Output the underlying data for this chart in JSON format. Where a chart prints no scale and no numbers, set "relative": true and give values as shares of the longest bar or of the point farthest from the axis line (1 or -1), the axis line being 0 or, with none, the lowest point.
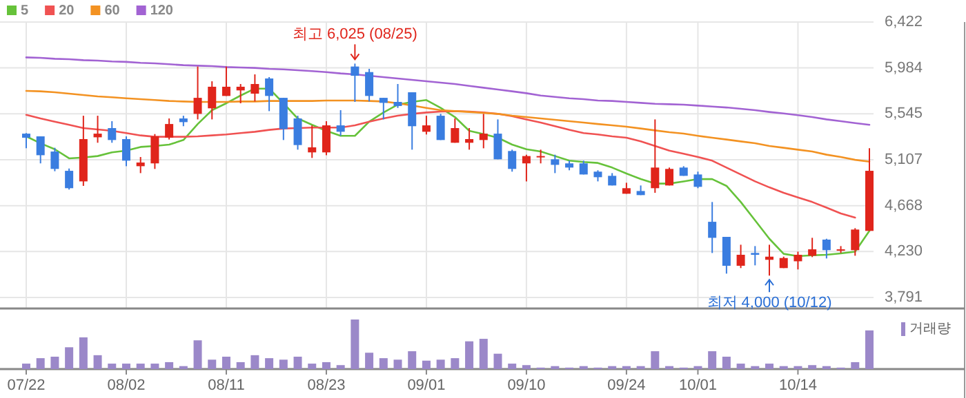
{
  "chart_data": [
    {
      "type": "candlestick",
      "categories": [
        "07/22",
        null,
        null,
        null,
        null,
        null,
        null,
        "08/02",
        null,
        null,
        null,
        null,
        null,
        null,
        "08/11",
        null,
        null,
        null,
        null,
        null,
        null,
        "08/23",
        null,
        null,
        null,
        null,
        null,
        null,
        "09/01",
        null,
        null,
        null,
        null,
        null,
        null,
        "09/10",
        null,
        null,
        null,
        null,
        null,
        null,
        "09/24",
        null,
        null,
        null,
        null,
        "10/01",
        null,
        null,
        null,
        null,
        null,
        null,
        "10/14",
        null,
        null,
        null,
        null,
        null
      ],
      "ohlc": [
        [
          5356,
          5361,
          5216,
          5317
        ],
        [
          5330,
          5330,
          5072,
          5150
        ],
        [
          5185,
          5221,
          4997,
          5019
        ],
        [
          5001,
          5023,
          4822,
          4835
        ],
        [
          4900,
          5527,
          4857,
          5304
        ],
        [
          5321,
          5527,
          5269,
          5356
        ],
        [
          5409,
          5475,
          5269,
          5295
        ],
        [
          5304,
          5330,
          5045,
          5098
        ],
        [
          5045,
          5133,
          4979,
          5080
        ],
        [
          5072,
          5352,
          5019,
          5330
        ],
        [
          5317,
          5501,
          5300,
          5448
        ],
        [
          5501,
          5527,
          5427,
          5466
        ],
        [
          5545,
          5997,
          5492,
          5698
        ],
        [
          5598,
          5856,
          5492,
          5804
        ],
        [
          5716,
          5997,
          5716,
          5804
        ],
        [
          5769,
          5830,
          5646,
          5804
        ],
        [
          5738,
          5922,
          5663,
          5830
        ],
        [
          5883,
          5896,
          5571,
          5716
        ],
        [
          5698,
          5698,
          5295,
          5400
        ],
        [
          5501,
          5527,
          5203,
          5247
        ],
        [
          5177,
          5435,
          5124,
          5225
        ],
        [
          5177,
          5475,
          5150,
          5435
        ],
        [
          5435,
          5580,
          5335,
          5374
        ],
        [
          5997,
          6025,
          5659,
          5909
        ],
        [
          5944,
          5975,
          5663,
          5716
        ],
        [
          5698,
          5698,
          5492,
          5650
        ],
        [
          5659,
          5830,
          5602,
          5620
        ],
        [
          5751,
          5751,
          5203,
          5427
        ],
        [
          5374,
          5527,
          5348,
          5435
        ],
        [
          5527,
          5545,
          5295,
          5295
        ],
        [
          5269,
          5501,
          5269,
          5409
        ],
        [
          5269,
          5409,
          5203,
          5304
        ],
        [
          5295,
          5545,
          5216,
          5356
        ],
        [
          5356,
          5492,
          5111,
          5111
        ],
        [
          5190,
          5203,
          4993,
          5019
        ],
        [
          5072,
          5155,
          4900,
          5142
        ],
        [
          5137,
          5203,
          5072,
          5142
        ],
        [
          5111,
          5155,
          4979,
          5058
        ],
        [
          5072,
          5098,
          5006,
          5032
        ],
        [
          5072,
          5098,
          4966,
          4966
        ],
        [
          4993,
          5006,
          4900,
          4940
        ],
        [
          4953,
          4979,
          4861,
          4861
        ],
        [
          4782,
          4887,
          4782,
          4835
        ],
        [
          4808,
          4861,
          4769,
          4769
        ],
        [
          4835,
          5492,
          4791,
          5032
        ],
        [
          4861,
          5032,
          4861,
          5019
        ],
        [
          5032,
          5045,
          4953,
          4953
        ],
        [
          4966,
          4993,
          4835,
          4848
        ],
        [
          4514,
          4703,
          4216,
          4361
        ],
        [
          4370,
          4370,
          4019,
          4094
        ],
        [
          4094,
          4295,
          4072,
          4199
        ],
        [
          4216,
          4282,
          4098,
          4199
        ],
        [
          4151,
          4295,
          4000,
          4181
        ],
        [
          4072,
          4181,
          4072,
          4168
        ],
        [
          4137,
          4229,
          4059,
          4199
        ],
        [
          4190,
          4361,
          4177,
          4251
        ],
        [
          4344,
          4352,
          4164,
          4243
        ],
        [
          4238,
          4282,
          4216,
          4251
        ],
        [
          4243,
          4453,
          4190,
          4440
        ],
        [
          4427,
          5216,
          4427,
          5001
        ]
      ],
      "colors": [
        "#3a7de0",
        "#3a7de0",
        "#3a7de0",
        "#3a7de0",
        "#e0251b",
        "#e0251b",
        "#3a7de0",
        "#3a7de0",
        "#e0251b",
        "#e0251b",
        "#e0251b",
        "#3a7de0",
        "#e0251b",
        "#e0251b",
        "#e0251b",
        "#e0251b",
        "#e0251b",
        "#3a7de0",
        "#3a7de0",
        "#3a7de0",
        "#e0251b",
        "#e0251b",
        "#3a7de0",
        "#3a7de0",
        "#3a7de0",
        "#3a7de0",
        "#3a7de0",
        "#3a7de0",
        "#e0251b",
        "#3a7de0",
        "#e0251b",
        "#e0251b",
        "#e0251b",
        "#3a7de0",
        "#3a7de0",
        "#e0251b",
        "#e0251b",
        "#3a7de0",
        "#3a7de0",
        "#3a7de0",
        "#3a7de0",
        "#3a7de0",
        "#e0251b",
        "#3a7de0",
        "#e0251b",
        "#e0251b",
        "#3a7de0",
        "#3a7de0",
        "#3a7de0",
        "#3a7de0",
        "#e0251b",
        "#3a7de0",
        "#e0251b",
        "#e0251b",
        "#e0251b",
        "#e0251b",
        "#3a7de0",
        "#e0251b",
        "#e0251b",
        "#e0251b"
      ],
      "series": [
        {
          "name": "5",
          "type": "line",
          "color": "#66c23a",
          "values": [
            5330,
            5264,
            5207,
            5120,
            5128,
            5142,
            5177,
            5194,
            5229,
            5238,
            5251,
            5295,
            5448,
            5580,
            5646,
            5720,
            5786,
            5786,
            5646,
            5501,
            5440,
            5383,
            5335,
            5335,
            5471,
            5558,
            5633,
            5659,
            5677,
            5602,
            5514,
            5383,
            5352,
            5317,
            5251,
            5207,
            5185,
            5142,
            5098,
            5085,
            5076,
            5032,
            4975,
            4922,
            4879,
            4879,
            4900,
            4922,
            4922,
            4857,
            4703,
            4528,
            4352,
            4208,
            4186,
            4194,
            4199,
            4212,
            4229,
            4427
          ]
        },
        {
          "name": "20",
          "type": "line",
          "color": "#f05252",
          "values": [
            5536,
            5501,
            5470,
            5440,
            5409,
            5396,
            5383,
            5361,
            5339,
            5326,
            5326,
            5326,
            5330,
            5339,
            5348,
            5361,
            5374,
            5392,
            5405,
            5409,
            5414,
            5414,
            5414,
            5435,
            5470,
            5501,
            5527,
            5545,
            5558,
            5567,
            5571,
            5567,
            5558,
            5545,
            5523,
            5492,
            5462,
            5427,
            5392,
            5361,
            5348,
            5330,
            5317,
            5282,
            5238,
            5194,
            5164,
            5133,
            5098,
            5032,
            4966,
            4900,
            4843,
            4791,
            4747,
            4703,
            4650,
            4594,
            4554,
            null
          ]
        },
        {
          "name": "60",
          "type": "line",
          "color": "#f39222",
          "values": [
            5764,
            5760,
            5751,
            5738,
            5725,
            5712,
            5703,
            5694,
            5685,
            5677,
            5668,
            5663,
            5659,
            5659,
            5659,
            5663,
            5663,
            5668,
            5668,
            5668,
            5668,
            5672,
            5672,
            5672,
            5668,
            5663,
            5646,
            5624,
            5602,
            5580,
            5571,
            5563,
            5554,
            5545,
            5527,
            5514,
            5501,
            5488,
            5475,
            5462,
            5448,
            5435,
            5422,
            5405,
            5387,
            5370,
            5356,
            5335,
            5317,
            5300,
            5282,
            5264,
            5238,
            5221,
            5203,
            5185,
            5155,
            5133,
            5106,
            5089
          ]
        },
        {
          "name": "120",
          "type": "line",
          "color": "#a263d3",
          "values": [
            6084,
            6080,
            6071,
            6067,
            6058,
            6054,
            6045,
            6041,
            6032,
            6027,
            6019,
            6010,
            6005,
            6001,
            5992,
            5988,
            5984,
            5975,
            5970,
            5962,
            5953,
            5944,
            5931,
            5922,
            5909,
            5896,
            5883,
            5870,
            5856,
            5843,
            5830,
            5812,
            5795,
            5777,
            5760,
            5742,
            5720,
            5707,
            5694,
            5685,
            5672,
            5668,
            5659,
            5650,
            5641,
            5637,
            5633,
            5624,
            5615,
            5606,
            5593,
            5580,
            5563,
            5549,
            5532,
            5514,
            5492,
            5475,
            5457,
            5440
          ]
        }
      ],
      "ylim": [
        3686,
        6422
      ],
      "yticks": [
        {
          "value": 6422,
          "label": "6,422"
        },
        {
          "value": 5984,
          "label": "5,984"
        },
        {
          "value": 5545,
          "label": "5,545"
        },
        {
          "value": 5107,
          "label": "5,107"
        },
        {
          "value": 4668,
          "label": "4,668"
        },
        {
          "value": 4230,
          "label": "4,230"
        },
        {
          "value": 3791,
          "label": "3,791"
        }
      ],
      "grid": true,
      "legend": "top left",
      "annotations": [
        {
          "text": "최고 6,025 (08/25)",
          "y": 6025
        },
        {
          "text": "최저 4,000 (10/12)",
          "y": 4000
        }
      ]
    },
    {
      "type": "bar",
      "categories": [
        null,
        null,
        null,
        null,
        null,
        null,
        null,
        null,
        null,
        null,
        null,
        null,
        null,
        null,
        null,
        null,
        null,
        null,
        null,
        null,
        null,
        null,
        null,
        null,
        null,
        null,
        null,
        null,
        null,
        null,
        null,
        null,
        null,
        null,
        null,
        null,
        null,
        null,
        null,
        null,
        null,
        null,
        null,
        null,
        null,
        null,
        null,
        null,
        null,
        null,
        null,
        null,
        null,
        null,
        null,
        null,
        null,
        null,
        null,
        null
      ],
      "relative": true,
      "legend": "top right",
      "series": [
        {
          "name": "거래량",
          "color": "#9b88c9",
          "values": [
            0.11,
            0.22,
            0.25,
            0.44,
            0.64,
            0.28,
            0.11,
            0.11,
            0.11,
            0.11,
            0.14,
            0.06,
            0.58,
            0.19,
            0.25,
            0.14,
            0.28,
            0.22,
            0.19,
            0.25,
            0.11,
            0.14,
            0.08,
            1,
            0.33,
            0.22,
            0.19,
            0.36,
            0.17,
            0.19,
            0.22,
            0.56,
            0.61,
            0.31,
            0.11,
            0.08,
            0.03,
            0.06,
            0.03,
            0.06,
            0.03,
            0.06,
            0.06,
            0.06,
            0.36,
            0.06,
            0.03,
            0.06,
            0.36,
            0.25,
            0.11,
            0.06,
            0.11,
            0.06,
            0.06,
            0.08,
            0.06,
            0.03,
            0.14,
            0.78
          ]
        }
      ]
    }
  ]
}
